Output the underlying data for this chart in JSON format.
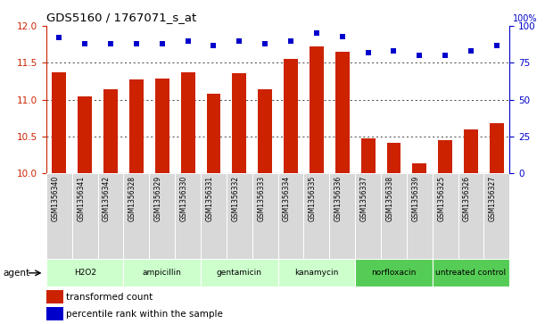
{
  "title": "GDS5160 / 1767071_s_at",
  "samples": [
    "GSM1356340",
    "GSM1356341",
    "GSM1356342",
    "GSM1356328",
    "GSM1356329",
    "GSM1356330",
    "GSM1356331",
    "GSM1356332",
    "GSM1356333",
    "GSM1356334",
    "GSM1356335",
    "GSM1356336",
    "GSM1356337",
    "GSM1356338",
    "GSM1356339",
    "GSM1356325",
    "GSM1356326",
    "GSM1356327"
  ],
  "bar_values": [
    11.37,
    11.04,
    11.14,
    11.27,
    11.28,
    11.37,
    11.08,
    11.36,
    11.14,
    11.55,
    11.72,
    11.65,
    10.47,
    10.42,
    10.13,
    10.45,
    10.59,
    10.68
  ],
  "percentile_values": [
    92,
    88,
    88,
    88,
    88,
    90,
    87,
    90,
    88,
    90,
    95,
    93,
    82,
    83,
    80,
    80,
    83,
    87
  ],
  "agents": [
    {
      "label": "H2O2",
      "start": 0,
      "end": 3,
      "light": true
    },
    {
      "label": "ampicillin",
      "start": 3,
      "end": 6,
      "light": true
    },
    {
      "label": "gentamicin",
      "start": 6,
      "end": 9,
      "light": true
    },
    {
      "label": "kanamycin",
      "start": 9,
      "end": 12,
      "light": true
    },
    {
      "label": "norfloxacin",
      "start": 12,
      "end": 15,
      "light": false
    },
    {
      "label": "untreated control",
      "start": 15,
      "end": 18,
      "light": false
    }
  ],
  "agent_light_color": "#ccffcc",
  "agent_dark_color": "#55cc55",
  "bar_color": "#cc2200",
  "dot_color": "#0000cc",
  "ylim_left": [
    10.0,
    12.0
  ],
  "ylim_right": [
    0,
    100
  ],
  "yticks_left": [
    10.0,
    10.5,
    11.0,
    11.5,
    12.0
  ],
  "yticks_right": [
    0,
    25,
    50,
    75,
    100
  ],
  "grid_values": [
    10.5,
    11.0,
    11.5
  ],
  "legend_items": [
    {
      "label": "transformed count",
      "color": "#cc2200"
    },
    {
      "label": "percentile rank within the sample",
      "color": "#0000cc"
    }
  ],
  "agent_label": "agent"
}
